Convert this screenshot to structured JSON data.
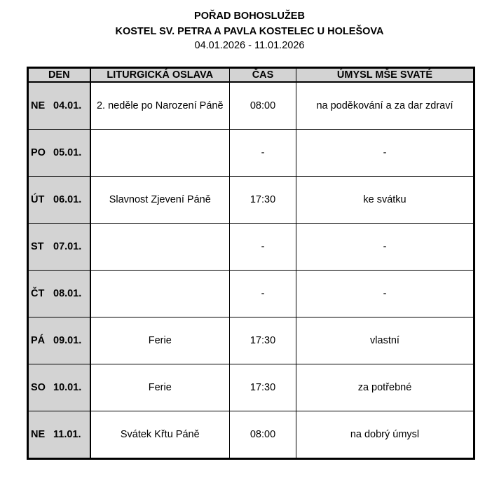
{
  "header": {
    "title": "POŘAD BOHOSLUŽEB",
    "church": "KOSTEL SV. PETRA A PAVLA KOSTELEC U HOLEŠOVA",
    "date_range": "04.01.2026 - 11.01.2026"
  },
  "columns": [
    "DEN",
    "LITURGICKÁ OSLAVA",
    "ČAS",
    "ÚMYSL MŠE SVATÉ"
  ],
  "rows": [
    {
      "day": "NE",
      "date": "04.01.",
      "celebration": "2. neděle po Narození Páně",
      "time": "08:00",
      "intention": "na poděkování a za dar zdraví"
    },
    {
      "day": "PO",
      "date": "05.01.",
      "celebration": "",
      "time": "-",
      "intention": "-"
    },
    {
      "day": "ÚT",
      "date": "06.01.",
      "celebration": "Slavnost Zjevení Páně",
      "time": "17:30",
      "intention": "ke svátku"
    },
    {
      "day": "ST",
      "date": "07.01.",
      "celebration": "",
      "time": "-",
      "intention": "-"
    },
    {
      "day": "ČT",
      "date": "08.01.",
      "celebration": "",
      "time": "-",
      "intention": "-"
    },
    {
      "day": "PÁ",
      "date": "09.01.",
      "celebration": "Ferie",
      "time": "17:30",
      "intention": "vlastní"
    },
    {
      "day": "SO",
      "date": "10.01.",
      "celebration": "Ferie",
      "time": "17:30",
      "intention": "za potřebné"
    },
    {
      "day": "NE",
      "date": "11.01.",
      "celebration": "Svátek Křtu Páně",
      "time": "08:00",
      "intention": "na dobrý úmysl"
    }
  ]
}
